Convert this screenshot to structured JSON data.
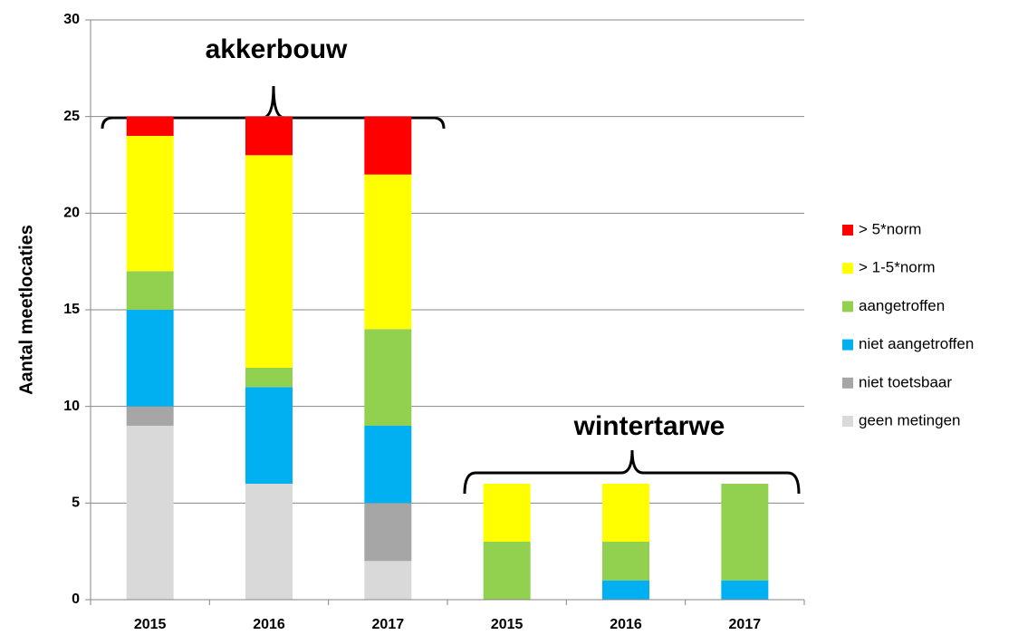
{
  "chart_data": {
    "type": "stacked_bar",
    "y_label": "Aantal meetlocaties",
    "categories": [
      "2015",
      "2016",
      "2017",
      "2015",
      "2016",
      "2017"
    ],
    "series": [
      {
        "name": "geen metingen",
        "color": "#d9d9d9",
        "values": [
          9,
          6,
          2,
          0,
          0,
          0
        ]
      },
      {
        "name": "niet toetsbaar",
        "color": "#a6a6a6",
        "values": [
          1,
          0,
          3,
          0,
          0,
          0
        ]
      },
      {
        "name": "niet aangetroffen",
        "color": "#00b0f0",
        "values": [
          5,
          5,
          4,
          0,
          1,
          1
        ]
      },
      {
        "name": "aangetroffen",
        "color": "#92d050",
        "values": [
          2,
          1,
          5,
          3,
          2,
          5
        ]
      },
      {
        "name": "> 1-5*norm",
        "color": "#ffff00",
        "values": [
          7,
          11,
          8,
          3,
          3,
          0
        ]
      },
      {
        "name": "> 5*norm",
        "color": "#ff0000",
        "values": [
          1,
          2,
          3,
          0,
          0,
          0
        ]
      }
    ],
    "annotations": [
      "akkerbouw",
      "wintertarwe"
    ],
    "ylim": [
      0,
      30
    ],
    "yticks": [
      0,
      5,
      10,
      15,
      20,
      25,
      30
    ],
    "grid": true,
    "legend": "right"
  }
}
